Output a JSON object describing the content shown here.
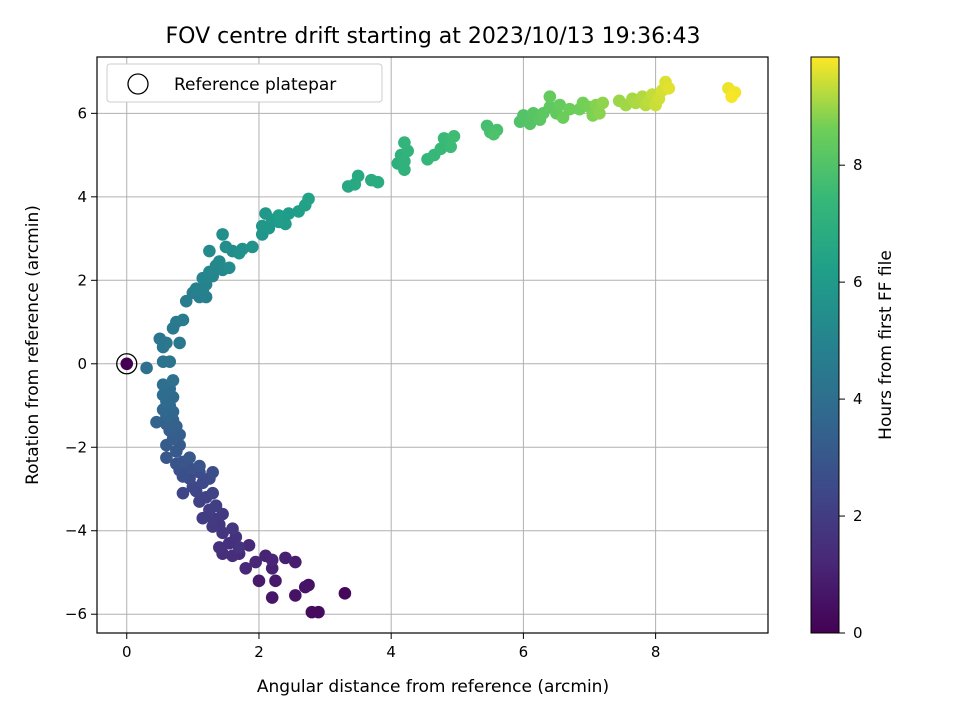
{
  "chart_data": {
    "type": "scatter",
    "title": "FOV centre drift starting at 2023/10/13 19:36:43",
    "xlabel": "Angular distance from reference (arcmin)",
    "ylabel": "Rotation from reference (arcmin)",
    "xlim": [
      -0.45,
      9.7
    ],
    "ylim": [
      -6.45,
      7.35
    ],
    "xticks": [
      0,
      2,
      4,
      6,
      8
    ],
    "yticks": [
      -6,
      -4,
      -2,
      0,
      2,
      4,
      6
    ],
    "grid": true,
    "legend": {
      "position": "top-left",
      "entries": [
        "Reference platepar"
      ]
    },
    "reference_point": {
      "x": 0,
      "y": 0
    },
    "colorbar": {
      "label": "Hours from first FF file",
      "range": [
        0,
        9.85
      ],
      "ticks": [
        0,
        2,
        4,
        6,
        8
      ],
      "colormap": "viridis"
    },
    "points": [
      {
        "x": 0,
        "y": 0,
        "c": 0
      },
      {
        "x": 3.3,
        "y": -5.5,
        "c": 0.2
      },
      {
        "x": 2.9,
        "y": -5.95,
        "c": 0.3
      },
      {
        "x": 2.8,
        "y": -5.95,
        "c": 0.35
      },
      {
        "x": 2.75,
        "y": -5.3,
        "c": 0.5
      },
      {
        "x": 2.55,
        "y": -5.55,
        "c": 0.55
      },
      {
        "x": 2.7,
        "y": -5.35,
        "c": 0.6
      },
      {
        "x": 2.2,
        "y": -5.6,
        "c": 0.7
      },
      {
        "x": 2.25,
        "y": -5.2,
        "c": 0.75
      },
      {
        "x": 2.0,
        "y": -5.2,
        "c": 0.8
      },
      {
        "x": 2.55,
        "y": -4.75,
        "c": 0.9
      },
      {
        "x": 2.4,
        "y": -4.65,
        "c": 1.0
      },
      {
        "x": 2.2,
        "y": -4.9,
        "c": 1.05
      },
      {
        "x": 2.1,
        "y": -4.6,
        "c": 1.1
      },
      {
        "x": 2.2,
        "y": -4.7,
        "c": 1.15
      },
      {
        "x": 1.95,
        "y": -4.75,
        "c": 1.2
      },
      {
        "x": 1.8,
        "y": -4.9,
        "c": 1.25
      },
      {
        "x": 1.85,
        "y": -4.35,
        "c": 1.3
      },
      {
        "x": 1.7,
        "y": -4.55,
        "c": 1.35
      },
      {
        "x": 1.6,
        "y": -4.6,
        "c": 1.4
      },
      {
        "x": 1.45,
        "y": -4.55,
        "c": 1.45
      },
      {
        "x": 1.55,
        "y": -4.3,
        "c": 1.5
      },
      {
        "x": 1.4,
        "y": -4.4,
        "c": 1.55
      },
      {
        "x": 1.65,
        "y": -4.15,
        "c": 1.6
      },
      {
        "x": 1.7,
        "y": -4.4,
        "c": 1.65
      },
      {
        "x": 1.45,
        "y": -4.05,
        "c": 1.7
      },
      {
        "x": 1.6,
        "y": -3.95,
        "c": 1.75
      },
      {
        "x": 1.4,
        "y": -3.85,
        "c": 1.8
      },
      {
        "x": 1.3,
        "y": -3.9,
        "c": 1.85
      },
      {
        "x": 1.3,
        "y": -3.7,
        "c": 1.9
      },
      {
        "x": 1.45,
        "y": -3.6,
        "c": 1.95
      },
      {
        "x": 1.15,
        "y": -3.7,
        "c": 2.0
      },
      {
        "x": 1.25,
        "y": -3.5,
        "c": 2.05
      },
      {
        "x": 1.35,
        "y": -3.4,
        "c": 2.1
      },
      {
        "x": 1.1,
        "y": -3.3,
        "c": 2.15
      },
      {
        "x": 1.2,
        "y": -3.2,
        "c": 2.2
      },
      {
        "x": 1.3,
        "y": -3.1,
        "c": 2.25
      },
      {
        "x": 1.05,
        "y": -3.05,
        "c": 2.3
      },
      {
        "x": 0.85,
        "y": -3.1,
        "c": 2.35
      },
      {
        "x": 1.0,
        "y": -2.95,
        "c": 2.4
      },
      {
        "x": 1.15,
        "y": -2.85,
        "c": 2.45
      },
      {
        "x": 1.25,
        "y": -2.75,
        "c": 2.5
      },
      {
        "x": 0.95,
        "y": -2.75,
        "c": 2.55
      },
      {
        "x": 1.1,
        "y": -2.6,
        "c": 2.6
      },
      {
        "x": 1.3,
        "y": -2.6,
        "c": 2.65
      },
      {
        "x": 0.85,
        "y": -2.7,
        "c": 2.7
      },
      {
        "x": 0.8,
        "y": -2.55,
        "c": 2.75
      },
      {
        "x": 0.95,
        "y": -2.5,
        "c": 2.8
      },
      {
        "x": 1.1,
        "y": -2.45,
        "c": 2.85
      },
      {
        "x": 0.75,
        "y": -2.4,
        "c": 2.9
      },
      {
        "x": 0.85,
        "y": -2.35,
        "c": 2.95
      },
      {
        "x": 0.95,
        "y": -2.25,
        "c": 3.0
      },
      {
        "x": 0.6,
        "y": -2.25,
        "c": 3.05
      },
      {
        "x": 0.75,
        "y": -2.1,
        "c": 3.1
      },
      {
        "x": 0.8,
        "y": -1.95,
        "c": 3.15
      },
      {
        "x": 0.6,
        "y": -1.95,
        "c": 3.2
      },
      {
        "x": 0.7,
        "y": -1.8,
        "c": 3.25
      },
      {
        "x": 0.8,
        "y": -1.7,
        "c": 3.3
      },
      {
        "x": 0.65,
        "y": -1.6,
        "c": 3.35
      },
      {
        "x": 0.75,
        "y": -1.5,
        "c": 3.4
      },
      {
        "x": 0.6,
        "y": -1.45,
        "c": 3.45
      },
      {
        "x": 0.7,
        "y": -1.35,
        "c": 3.5
      },
      {
        "x": 0.45,
        "y": -1.4,
        "c": 3.55
      },
      {
        "x": 0.6,
        "y": -1.25,
        "c": 3.6
      },
      {
        "x": 0.7,
        "y": -1.15,
        "c": 3.65
      },
      {
        "x": 0.55,
        "y": -1.1,
        "c": 3.7
      },
      {
        "x": 0.65,
        "y": -1.0,
        "c": 3.75
      },
      {
        "x": 0.6,
        "y": -0.9,
        "c": 3.8
      },
      {
        "x": 0.7,
        "y": -0.8,
        "c": 3.85
      },
      {
        "x": 0.55,
        "y": -0.75,
        "c": 3.9
      },
      {
        "x": 0.65,
        "y": -0.6,
        "c": 3.95
      },
      {
        "x": 0.55,
        "y": -0.5,
        "c": 4.0
      },
      {
        "x": 0.7,
        "y": -0.4,
        "c": 4.05
      },
      {
        "x": 0.3,
        "y": -0.1,
        "c": 4.1
      },
      {
        "x": 0.55,
        "y": 0.05,
        "c": 4.15
      },
      {
        "x": 0.65,
        "y": 0.05,
        "c": 4.2
      },
      {
        "x": 0.55,
        "y": 0.4,
        "c": 4.3
      },
      {
        "x": 0.5,
        "y": 0.6,
        "c": 4.35
      },
      {
        "x": 0.6,
        "y": 0.5,
        "c": 4.4
      },
      {
        "x": 0.8,
        "y": 0.5,
        "c": 4.45
      },
      {
        "x": 0.7,
        "y": 0.85,
        "c": 4.5
      },
      {
        "x": 0.75,
        "y": 1.0,
        "c": 4.55
      },
      {
        "x": 0.85,
        "y": 1.05,
        "c": 4.6
      },
      {
        "x": 0.9,
        "y": 1.5,
        "c": 4.65
      },
      {
        "x": 1.0,
        "y": 1.7,
        "c": 4.7
      },
      {
        "x": 1.1,
        "y": 1.6,
        "c": 4.75
      },
      {
        "x": 1.2,
        "y": 1.6,
        "c": 4.8
      },
      {
        "x": 1.05,
        "y": 1.8,
        "c": 4.85
      },
      {
        "x": 1.15,
        "y": 1.75,
        "c": 4.9
      },
      {
        "x": 1.2,
        "y": 1.9,
        "c": 4.95
      },
      {
        "x": 1.15,
        "y": 2.05,
        "c": 5.0
      },
      {
        "x": 1.3,
        "y": 2.1,
        "c": 5.05
      },
      {
        "x": 1.25,
        "y": 2.2,
        "c": 5.1
      },
      {
        "x": 1.35,
        "y": 2.35,
        "c": 5.15
      },
      {
        "x": 1.45,
        "y": 2.25,
        "c": 5.2
      },
      {
        "x": 1.4,
        "y": 2.45,
        "c": 5.25
      },
      {
        "x": 1.25,
        "y": 2.7,
        "c": 5.3
      },
      {
        "x": 1.55,
        "y": 2.3,
        "c": 5.35
      },
      {
        "x": 1.6,
        "y": 2.7,
        "c": 5.4
      },
      {
        "x": 1.5,
        "y": 2.8,
        "c": 5.45
      },
      {
        "x": 1.45,
        "y": 3.1,
        "c": 5.5
      },
      {
        "x": 1.7,
        "y": 2.65,
        "c": 5.55
      },
      {
        "x": 1.75,
        "y": 2.75,
        "c": 5.6
      },
      {
        "x": 1.9,
        "y": 2.8,
        "c": 5.65
      },
      {
        "x": 2.05,
        "y": 3.1,
        "c": 5.75
      },
      {
        "x": 2.15,
        "y": 3.25,
        "c": 5.8
      },
      {
        "x": 2.05,
        "y": 3.3,
        "c": 5.85
      },
      {
        "x": 2.2,
        "y": 3.45,
        "c": 5.9
      },
      {
        "x": 2.1,
        "y": 3.6,
        "c": 5.95
      },
      {
        "x": 2.3,
        "y": 3.4,
        "c": 6.0
      },
      {
        "x": 2.4,
        "y": 3.35,
        "c": 6.05
      },
      {
        "x": 2.45,
        "y": 3.6,
        "c": 6.1
      },
      {
        "x": 2.3,
        "y": 3.55,
        "c": 6.15
      },
      {
        "x": 2.6,
        "y": 3.65,
        "c": 6.2
      },
      {
        "x": 2.7,
        "y": 3.8,
        "c": 6.3
      },
      {
        "x": 2.75,
        "y": 3.95,
        "c": 6.35
      },
      {
        "x": 3.35,
        "y": 4.25,
        "c": 6.6
      },
      {
        "x": 3.45,
        "y": 4.3,
        "c": 6.65
      },
      {
        "x": 3.5,
        "y": 4.5,
        "c": 6.7
      },
      {
        "x": 3.7,
        "y": 4.4,
        "c": 6.8
      },
      {
        "x": 3.8,
        "y": 4.35,
        "c": 6.85
      },
      {
        "x": 4.1,
        "y": 4.8,
        "c": 7.0
      },
      {
        "x": 4.15,
        "y": 5.0,
        "c": 7.05
      },
      {
        "x": 4.2,
        "y": 4.85,
        "c": 7.1
      },
      {
        "x": 4.2,
        "y": 4.65,
        "c": 7.15
      },
      {
        "x": 4.25,
        "y": 5.1,
        "c": 7.2
      },
      {
        "x": 4.2,
        "y": 5.3,
        "c": 7.25
      },
      {
        "x": 4.55,
        "y": 4.9,
        "c": 7.35
      },
      {
        "x": 4.65,
        "y": 5.0,
        "c": 7.4
      },
      {
        "x": 4.75,
        "y": 5.15,
        "c": 7.45
      },
      {
        "x": 4.8,
        "y": 5.4,
        "c": 7.5
      },
      {
        "x": 4.9,
        "y": 5.2,
        "c": 7.55
      },
      {
        "x": 4.95,
        "y": 5.45,
        "c": 7.6
      },
      {
        "x": 5.45,
        "y": 5.7,
        "c": 7.75
      },
      {
        "x": 5.5,
        "y": 5.55,
        "c": 7.8
      },
      {
        "x": 5.6,
        "y": 5.6,
        "c": 7.85
      },
      {
        "x": 5.55,
        "y": 5.5,
        "c": 7.9
      },
      {
        "x": 5.95,
        "y": 5.8,
        "c": 8.0
      },
      {
        "x": 6.0,
        "y": 5.95,
        "c": 8.05
      },
      {
        "x": 6.1,
        "y": 5.75,
        "c": 8.1
      },
      {
        "x": 6.15,
        "y": 6.0,
        "c": 8.15
      },
      {
        "x": 6.25,
        "y": 5.85,
        "c": 8.2
      },
      {
        "x": 6.3,
        "y": 6.0,
        "c": 8.25
      },
      {
        "x": 6.4,
        "y": 6.15,
        "c": 8.3
      },
      {
        "x": 6.5,
        "y": 6.0,
        "c": 8.35
      },
      {
        "x": 6.4,
        "y": 6.4,
        "c": 8.4
      },
      {
        "x": 6.55,
        "y": 6.2,
        "c": 8.45
      },
      {
        "x": 6.6,
        "y": 5.9,
        "c": 8.5
      },
      {
        "x": 6.7,
        "y": 6.1,
        "c": 8.55
      },
      {
        "x": 6.85,
        "y": 6.1,
        "c": 8.6
      },
      {
        "x": 6.9,
        "y": 6.25,
        "c": 8.65
      },
      {
        "x": 7.0,
        "y": 6.15,
        "c": 8.7
      },
      {
        "x": 7.05,
        "y": 5.95,
        "c": 8.75
      },
      {
        "x": 7.1,
        "y": 6.2,
        "c": 8.8
      },
      {
        "x": 7.15,
        "y": 6.0,
        "c": 8.85
      },
      {
        "x": 7.2,
        "y": 6.25,
        "c": 8.9
      },
      {
        "x": 7.45,
        "y": 6.3,
        "c": 9.0
      },
      {
        "x": 7.55,
        "y": 6.2,
        "c": 9.05
      },
      {
        "x": 7.65,
        "y": 6.35,
        "c": 9.1
      },
      {
        "x": 7.7,
        "y": 6.25,
        "c": 9.15
      },
      {
        "x": 7.8,
        "y": 6.4,
        "c": 9.2
      },
      {
        "x": 7.85,
        "y": 6.2,
        "c": 9.25
      },
      {
        "x": 7.9,
        "y": 6.3,
        "c": 9.3
      },
      {
        "x": 7.95,
        "y": 6.45,
        "c": 9.35
      },
      {
        "x": 8.0,
        "y": 6.2,
        "c": 9.4
      },
      {
        "x": 8.05,
        "y": 6.35,
        "c": 9.45
      },
      {
        "x": 8.1,
        "y": 6.55,
        "c": 9.5
      },
      {
        "x": 8.15,
        "y": 6.75,
        "c": 9.55
      },
      {
        "x": 8.2,
        "y": 6.6,
        "c": 9.6
      },
      {
        "x": 9.1,
        "y": 6.6,
        "c": 9.7
      },
      {
        "x": 9.2,
        "y": 6.5,
        "c": 9.75
      },
      {
        "x": 9.15,
        "y": 6.4,
        "c": 9.8
      }
    ]
  }
}
